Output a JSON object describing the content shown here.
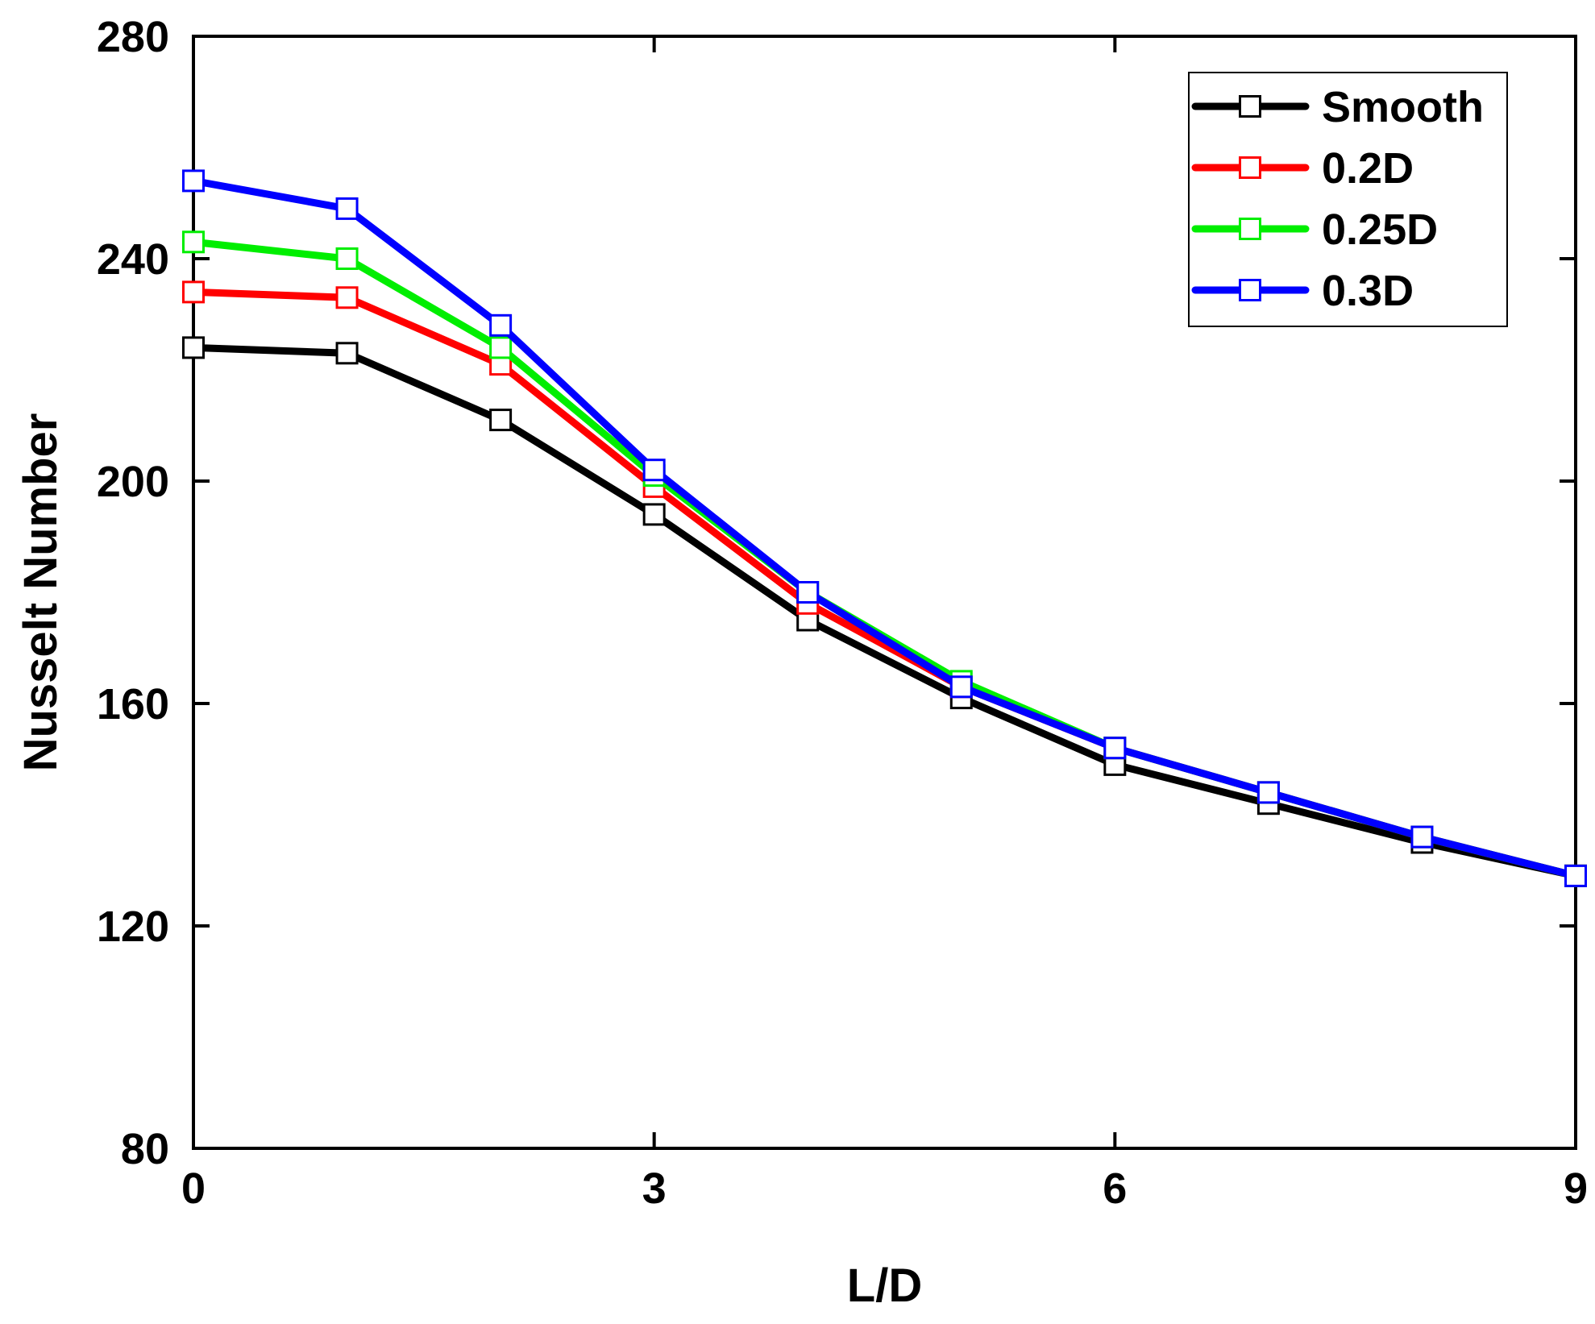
{
  "chart_data": {
    "type": "line",
    "title": "",
    "xlabel": "L/D",
    "ylabel": "Nusselt Number",
    "xlim": [
      0,
      9
    ],
    "ylim": [
      80,
      280
    ],
    "xticks": [
      0,
      3,
      6,
      9
    ],
    "xtick_labels": [
      "0",
      "3",
      "6",
      "9"
    ],
    "yticks": [
      80,
      120,
      160,
      200,
      240,
      280
    ],
    "ytick_labels": [
      "80",
      "120",
      "160",
      "200",
      "240",
      "280"
    ],
    "grid": false,
    "legend_position": "top-right",
    "marker": "hollow-square",
    "x": [
      0,
      1,
      2,
      3,
      4,
      5,
      6,
      7,
      8,
      9
    ],
    "series": [
      {
        "name": "Smooth",
        "color": "#000000",
        "values": [
          224,
          223,
          211,
          194,
          175,
          161,
          149,
          142,
          135,
          129
        ]
      },
      {
        "name": "0.2D",
        "color": "#ff0000",
        "values": [
          234,
          233,
          221,
          199,
          178,
          163,
          152,
          144,
          136,
          129
        ]
      },
      {
        "name": "0.25D",
        "color": "#00ee00",
        "values": [
          243,
          240,
          224,
          201,
          180,
          164,
          152,
          144,
          136,
          129
        ]
      },
      {
        "name": "0.3D",
        "color": "#0000ff",
        "values": [
          254,
          249,
          228,
          202,
          180,
          163,
          152,
          144,
          136,
          129
        ]
      }
    ]
  }
}
